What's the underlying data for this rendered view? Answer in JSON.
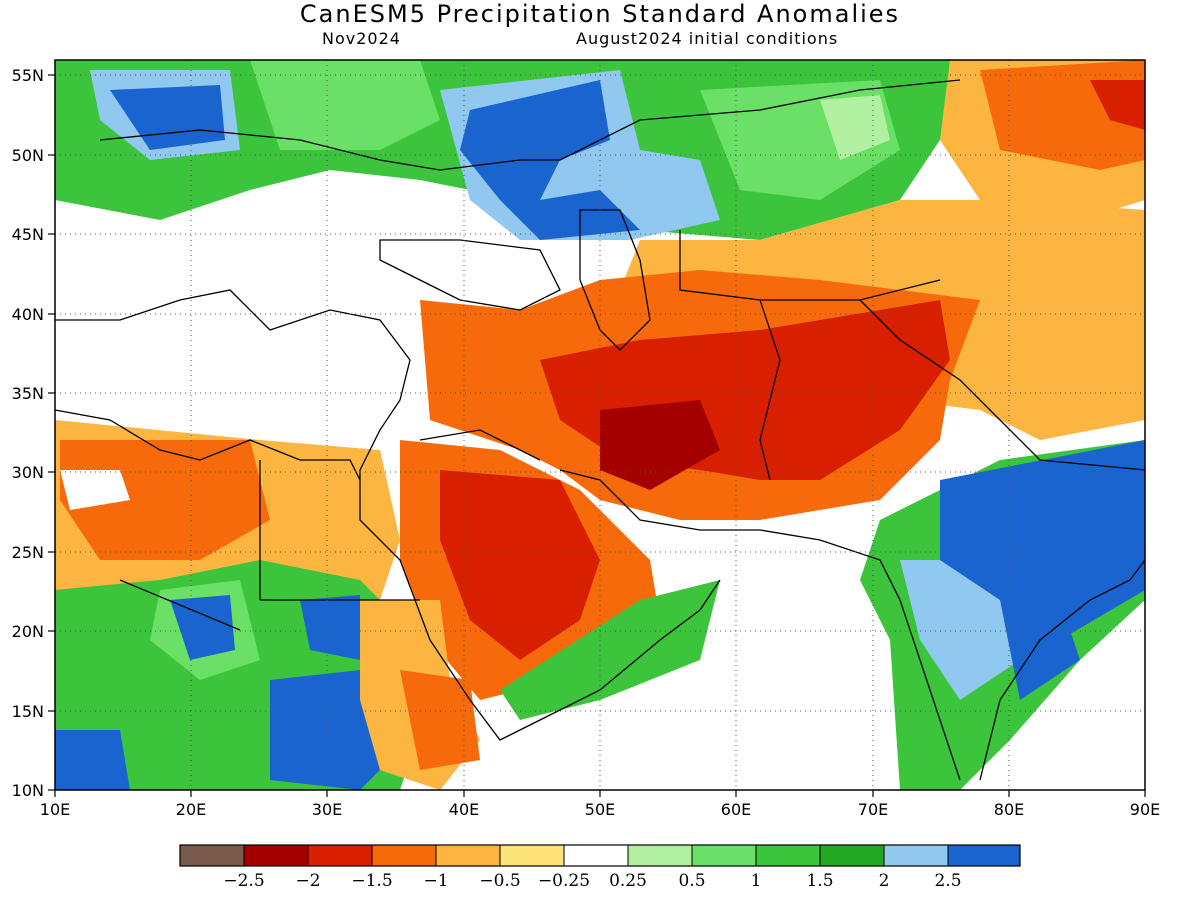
{
  "header": {
    "title": "CanESM5 Precipitation Standard Anomalies",
    "target_month": "Nov2024",
    "init_conditions": "August2024 initial conditions"
  },
  "map": {
    "lon_range": [
      10,
      90
    ],
    "lat_range": [
      10,
      56
    ],
    "lon_ticks": [
      "10E",
      "20E",
      "30E",
      "40E",
      "50E",
      "60E",
      "70E",
      "80E",
      "90E"
    ],
    "lat_ticks": [
      "10N",
      "15N",
      "20N",
      "25N",
      "30N",
      "35N",
      "40N",
      "45N",
      "50N",
      "55N"
    ],
    "gridlines": "dotted"
  },
  "colorbar": {
    "colors": [
      "#7a5a4a",
      "#a50000",
      "#d82000",
      "#f76a0c",
      "#fbb540",
      "#fde27a",
      "#ffffff",
      "#b0f0a0",
      "#6ae066",
      "#3cc43c",
      "#22a822",
      "#90c8f0",
      "#1a64d0"
    ],
    "labels": [
      "−2.5",
      "−2",
      "−1.5",
      "−1",
      "−0.5",
      "−0.25",
      "0.25",
      "0.5",
      "1",
      "1.5",
      "2",
      "2.5"
    ]
  }
}
